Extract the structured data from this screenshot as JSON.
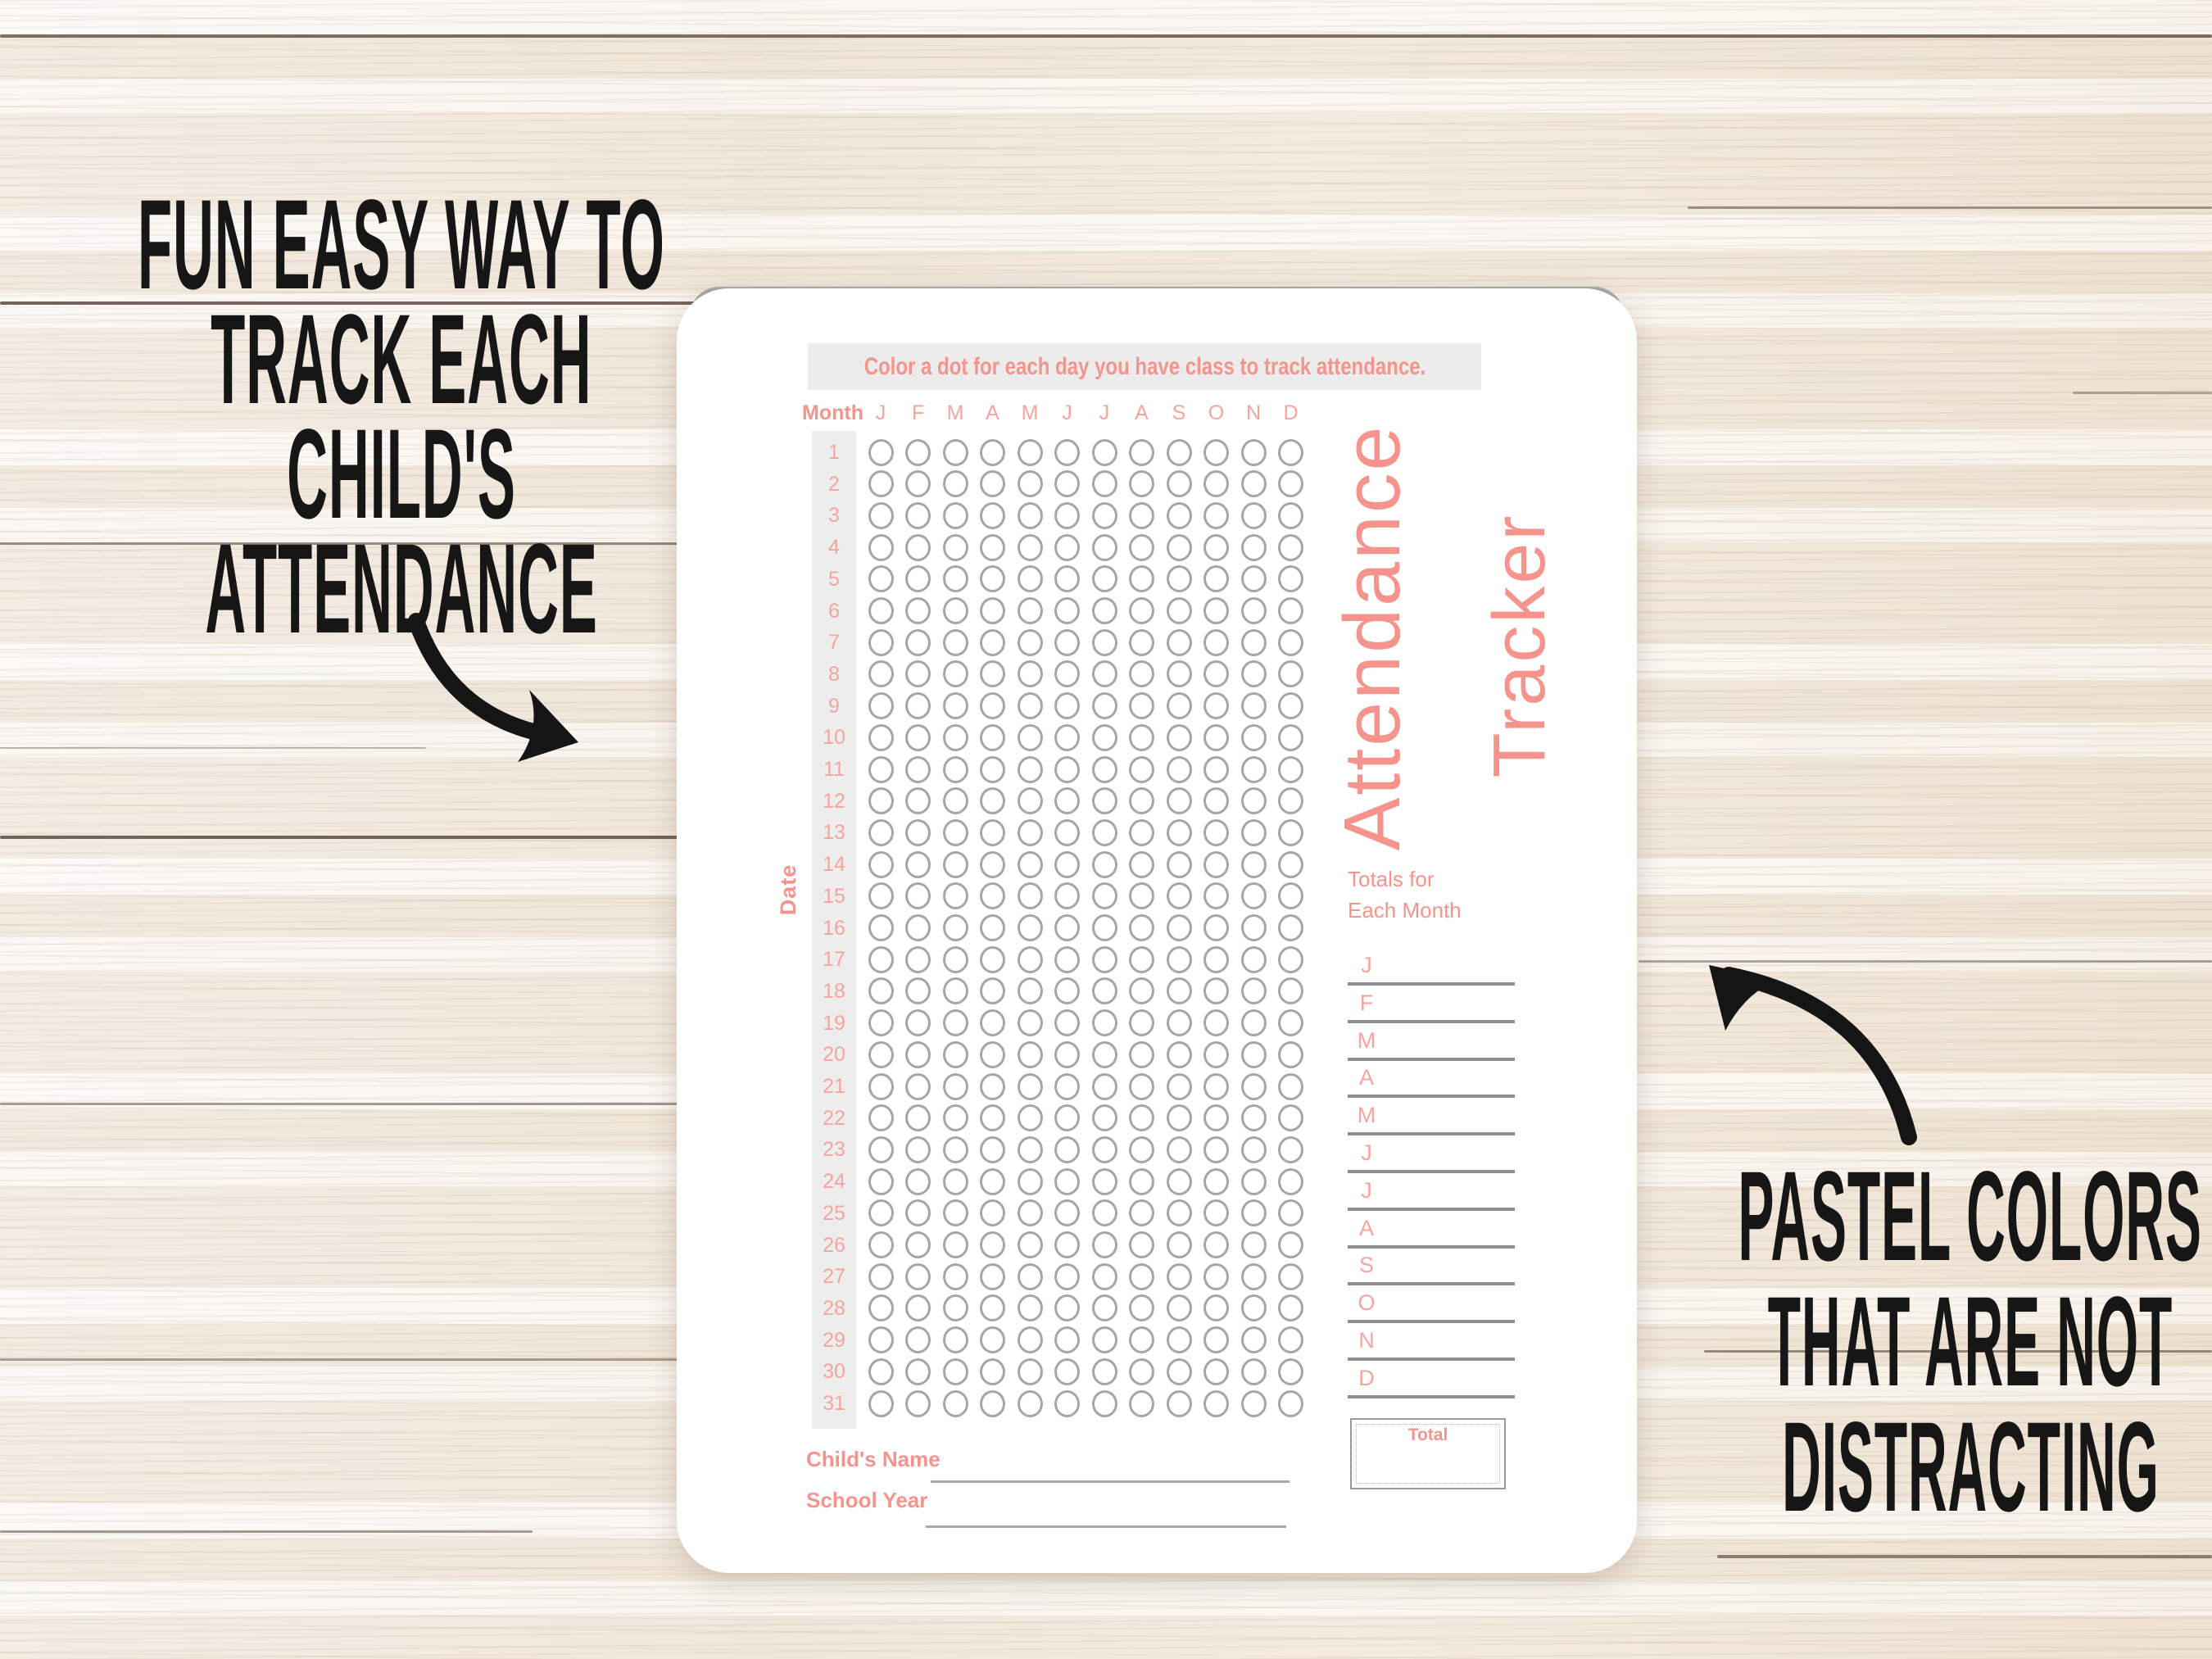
{
  "captions": {
    "left": {
      "lines": [
        "FUN EASY WAY TO",
        "TRACK EACH",
        "CHILD'S",
        "ATTENDANCE"
      ]
    },
    "right": {
      "lines": [
        "PASTEL COLORS",
        "THAT ARE NOT",
        "DISTRACTING"
      ]
    }
  },
  "arrows": {
    "left": "curved-arrow-pointing-down-right-to-tracker",
    "right": "curved-arrow-pointing-up-left-to-tracker"
  },
  "tracker": {
    "instruction": "Color a dot for each day you have class to track attendance.",
    "month_label": "Month",
    "month_columns": [
      "J",
      "F",
      "M",
      "A",
      "M",
      "J",
      "J",
      "A",
      "S",
      "O",
      "N",
      "D"
    ],
    "date_label": "Date",
    "day_numbers": [
      1,
      2,
      3,
      4,
      5,
      6,
      7,
      8,
      9,
      10,
      11,
      12,
      13,
      14,
      15,
      16,
      17,
      18,
      19,
      20,
      21,
      22,
      23,
      24,
      25,
      26,
      27,
      28,
      29,
      30,
      31
    ],
    "title": {
      "line1": "Attendance",
      "line2": "Tracker"
    },
    "totals": {
      "heading_line1": "Totals for",
      "heading_line2": "Each Month",
      "months": [
        "J",
        "F",
        "M",
        "A",
        "M",
        "J",
        "J",
        "A",
        "S",
        "O",
        "N",
        "D"
      ],
      "total_box_label": "Total"
    },
    "fields": {
      "childs_name_label": "Child's Name",
      "school_year_label": "School Year"
    }
  },
  "colors": {
    "coral": "#f6938c",
    "coral_light": "#f8a49e",
    "dot_gray": "#a6a6a6",
    "strip_gray": "#ededed",
    "line_gray": "#8f8f8f",
    "ink": "#161616",
    "card_white": "#ffffff",
    "backsheet_gray": "#a9a9a9"
  }
}
